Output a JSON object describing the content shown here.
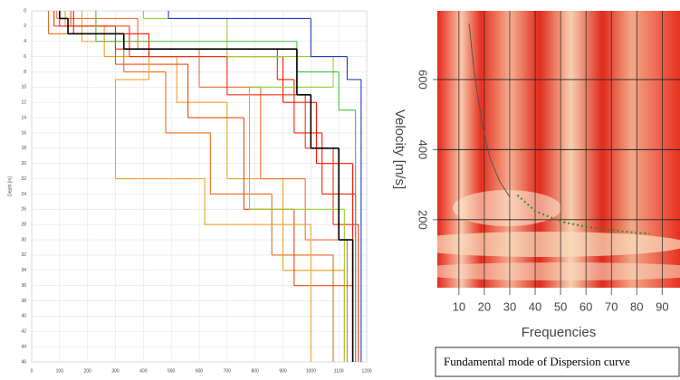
{
  "chart_data": [
    {
      "type": "step-profile",
      "y_label": "Depth [m]",
      "xlim": [
        0,
        1200
      ],
      "xticks": [
        0,
        100,
        200,
        300,
        400,
        500,
        600,
        700,
        800,
        900,
        1000,
        1100,
        1200
      ],
      "ylim": [
        0,
        46
      ],
      "yticks": [
        0,
        2,
        4,
        6,
        8,
        10,
        12,
        14,
        16,
        18,
        20,
        22,
        24,
        26,
        28,
        30,
        32,
        34,
        36,
        38,
        40,
        42,
        44,
        46
      ],
      "grid": true,
      "series": [
        {
          "color": "#f0a020",
          "depths": [
            0,
            2,
            6,
            12,
            22,
            34,
            46
          ],
          "values": [
            120,
            260,
            520,
            700,
            900,
            1120
          ]
        },
        {
          "color": "#e86a20",
          "depths": [
            0,
            3,
            8,
            16,
            24,
            32,
            46
          ],
          "values": [
            60,
            330,
            480,
            640,
            860,
            1080
          ]
        },
        {
          "color": "#f07030",
          "depths": [
            0,
            1,
            5,
            10,
            22,
            30,
            46
          ],
          "values": [
            90,
            380,
            600,
            820,
            980,
            1130
          ]
        },
        {
          "color": "#e84a10",
          "depths": [
            0,
            2,
            7,
            14,
            26,
            36,
            46
          ],
          "values": [
            140,
            300,
            560,
            760,
            940,
            1150
          ]
        },
        {
          "color": "#f5a030",
          "depths": [
            0,
            4,
            9,
            22,
            28,
            46
          ],
          "values": [
            180,
            420,
            300,
            620,
            1000
          ]
        },
        {
          "color": "#ff2000",
          "depths": [
            0,
            2,
            5,
            9,
            16,
            24,
            46
          ],
          "values": [
            100,
            300,
            880,
            940,
            1040,
            1160
          ]
        },
        {
          "color": "#ff1000",
          "depths": [
            0,
            3,
            6,
            12,
            20,
            46
          ],
          "values": [
            150,
            420,
            900,
            1020,
            1150
          ]
        },
        {
          "color": "#ee3010",
          "depths": [
            0,
            2,
            6,
            11,
            18,
            28,
            46
          ],
          "values": [
            80,
            350,
            700,
            980,
            1080,
            1170
          ]
        },
        {
          "color": "#9acd32",
          "depths": [
            0,
            1,
            6,
            10,
            26,
            46
          ],
          "values": [
            400,
            700,
            1080,
            780,
            1120
          ]
        },
        {
          "color": "#1e3cc8",
          "depths": [
            0,
            1,
            6,
            9,
            46
          ],
          "values": [
            490,
            1000,
            1130,
            1180
          ]
        },
        {
          "color": "#40c040",
          "depths": [
            0,
            4,
            8,
            13,
            46
          ],
          "values": [
            230,
            950,
            1100,
            1160
          ]
        },
        {
          "color": "#000000",
          "depths": [
            0,
            1,
            3,
            5,
            11,
            18,
            30,
            46
          ],
          "values": [
            100,
            130,
            330,
            950,
            1000,
            1100,
            1150
          ]
        }
      ]
    },
    {
      "type": "dispersion",
      "x_label": "Frequencies",
      "y_label": "Velocity [m/s]",
      "caption": "Fundamental mode of Dispersion curve",
      "xlim": [
        1.5,
        97
      ],
      "xticks": [
        10,
        20,
        30,
        40,
        50,
        60,
        70,
        80,
        90
      ],
      "ylim": [
        6,
        796
      ],
      "yticks": [
        200,
        400,
        600
      ],
      "grid": true,
      "series": [
        {
          "color": "#555555",
          "x": [
            14,
            16,
            19,
            22,
            26,
            30
          ],
          "values": [
            760,
            620,
            480,
            380,
            310,
            265
          ]
        },
        {
          "color": "#2e8b2e",
          "x": [
            33,
            40,
            50,
            60,
            70,
            80,
            85
          ],
          "values": [
            270,
            225,
            195,
            180,
            170,
            163,
            160
          ]
        }
      ]
    }
  ]
}
